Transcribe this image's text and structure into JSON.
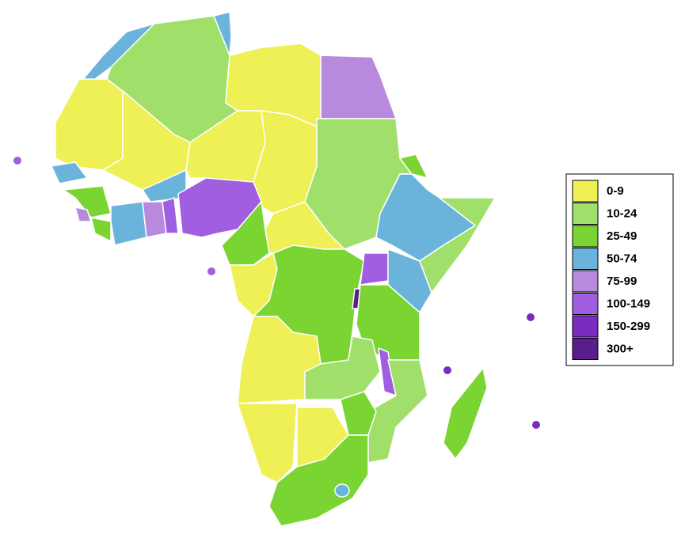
{
  "legend": {
    "items": [
      {
        "label": "0-9",
        "color": "#eef055"
      },
      {
        "label": "10-24",
        "color": "#a0e06a"
      },
      {
        "label": "25-49",
        "color": "#7ad432"
      },
      {
        "label": "50-74",
        "color": "#6ab4dc"
      },
      {
        "label": "75-99",
        "color": "#b88ade"
      },
      {
        "label": "100-149",
        "color": "#a05ee0"
      },
      {
        "label": "150-299",
        "color": "#7a2cc0"
      },
      {
        "label": "300+",
        "color": "#5a1e8c"
      }
    ]
  }
}
